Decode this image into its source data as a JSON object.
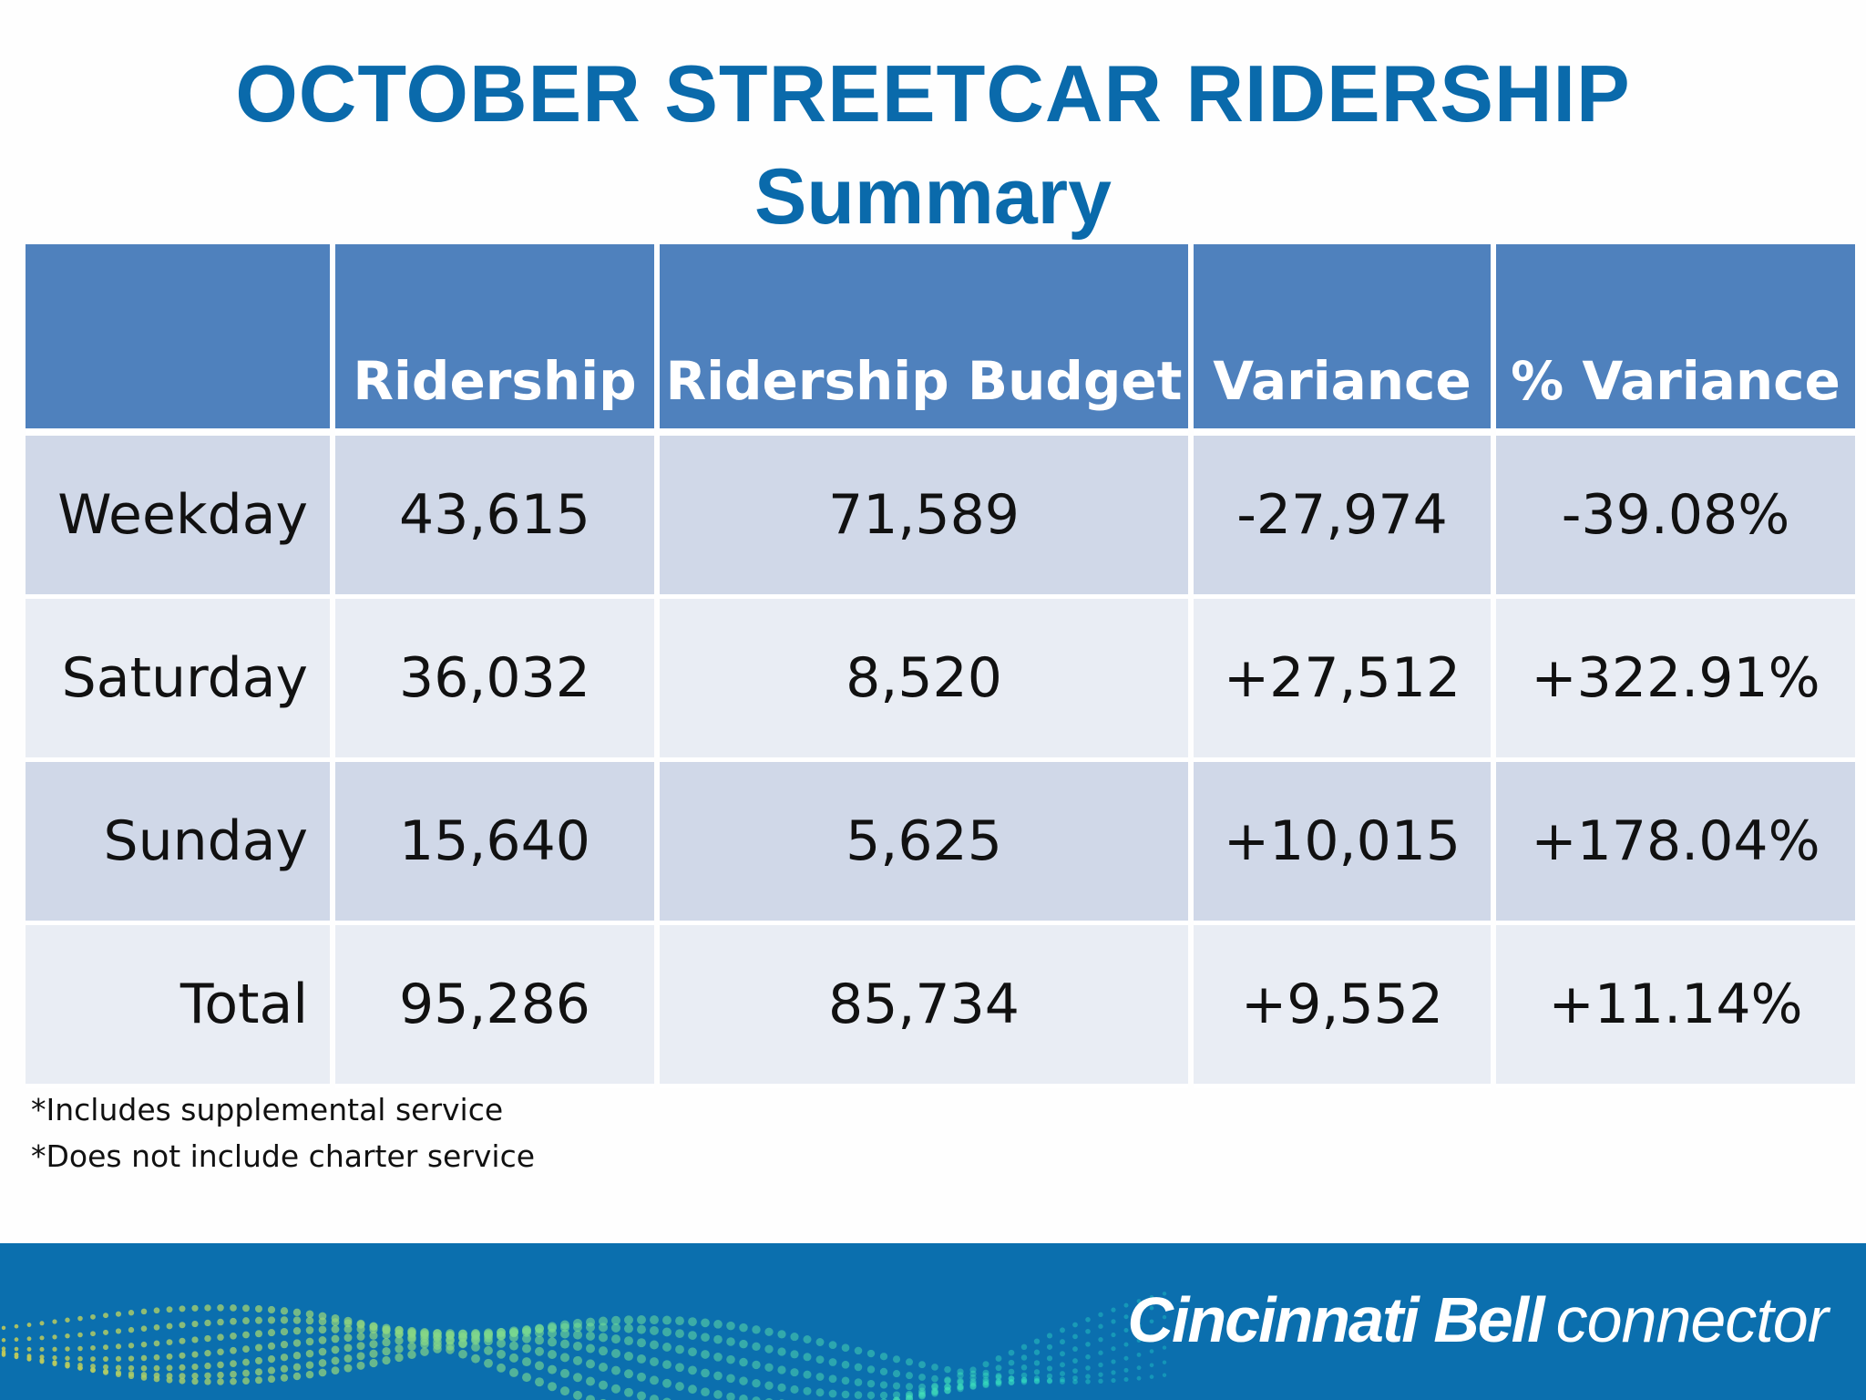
{
  "title": "OCTOBER STREETCAR RIDERSHIP",
  "subtitle": "Summary",
  "table": {
    "headers": [
      "",
      "Ridership",
      "Ridership Budget",
      "Variance",
      "% Variance"
    ],
    "rows": [
      [
        "Weekday",
        "43,615",
        "71,589",
        "-27,974",
        "-39.08%"
      ],
      [
        "Saturday",
        "36,032",
        "8,520",
        "+27,512",
        "+322.91%"
      ],
      [
        "Sunday",
        "15,640",
        "5,625",
        "+10,015",
        "+178.04%"
      ],
      [
        "Total",
        "95,286",
        "85,734",
        "+9,552",
        "+11.14%"
      ]
    ]
  },
  "notes": [
    "*Includes supplemental service",
    "*Does not include charter service"
  ],
  "footer": {
    "brand_primary": "Cincinnati Bell",
    "brand_secondary": "connector"
  },
  "colors": {
    "title": "#0a6aab",
    "header_bg": "#4f81bd",
    "row_dark": "#d0d8e8",
    "row_light": "#e9edf4",
    "footer_bg": "#0b6fae"
  }
}
